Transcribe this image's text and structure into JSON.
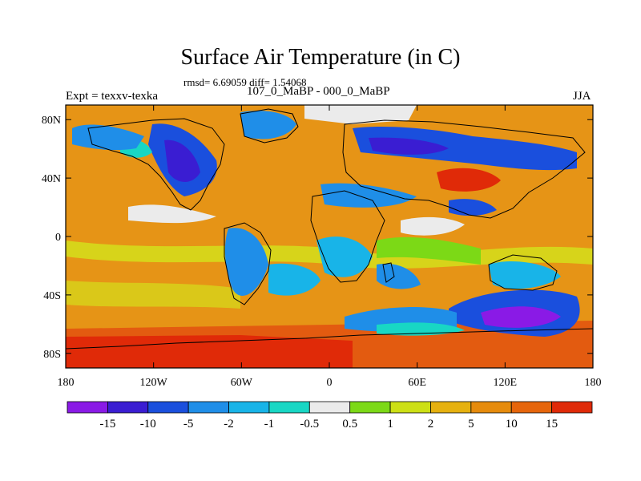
{
  "title": "Surface Air Temperature (in C)",
  "stats_line": "rmsd= 6.69059 diff= 1.54068",
  "subtitle": "107_0_MaBP - 000_0_MaBP",
  "experiment": "Expt = texxv-texka",
  "season": "JJA",
  "map": {
    "projection": "cylindrical-equidistant",
    "lon_range": [
      -180,
      180
    ],
    "lat_range": [
      -90,
      90
    ],
    "y_ticks": [
      "80N",
      "40N",
      "0",
      "40S",
      "80S"
    ],
    "y_tick_values": [
      80,
      40,
      0,
      -40,
      -80
    ],
    "x_ticks": [
      "180",
      "120W",
      "60W",
      "0",
      "60E",
      "120E",
      "180"
    ],
    "x_tick_values": [
      -180,
      -120,
      -60,
      0,
      60,
      120,
      180
    ]
  },
  "colorbar": {
    "labels": [
      "-15",
      "-10",
      "-5",
      "-2",
      "-1",
      "-0.5",
      "0.5",
      "1",
      "2",
      "5",
      "10",
      "15"
    ],
    "colors": [
      "#8a1ae6",
      "#3a1dd2",
      "#1a4fdd",
      "#1f8ee8",
      "#18b4e8",
      "#18d7c4",
      "#ebebeb",
      "#7cd916",
      "#cde015",
      "#e6b10f",
      "#e68b0c",
      "#e6650b",
      "#e02a08"
    ]
  },
  "field_colors": {
    "ocean_warm": "#e69416",
    "ocean_hot": "#e35b10",
    "ocean_mild": "#d7d41a",
    "neutral": "#ebebeb",
    "cool": "#1f8ee8",
    "cold": "#1a4fdd",
    "very_cold": "#3a1dd2",
    "extreme_cold": "#8a1ae6",
    "aqua": "#18d7c4",
    "green": "#7cd916"
  }
}
